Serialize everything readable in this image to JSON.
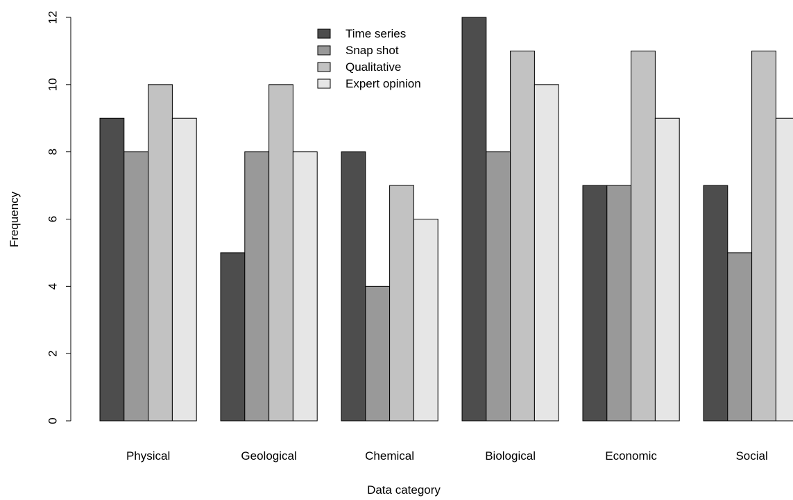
{
  "chart_data": {
    "type": "bar",
    "title": "",
    "xlabel": "Data category",
    "ylabel": "Frequency",
    "ylim": [
      0,
      12
    ],
    "yticks": [
      0,
      2,
      4,
      6,
      8,
      10,
      12
    ],
    "categories": [
      "Physical",
      "Geological",
      "Chemical",
      "Biological",
      "Economic",
      "Social"
    ],
    "series": [
      {
        "name": "Time series",
        "color": "#4d4d4d",
        "values": [
          9,
          5,
          8,
          12,
          7,
          7
        ]
      },
      {
        "name": "Snap shot",
        "color": "#999999",
        "values": [
          8,
          8,
          4,
          8,
          7,
          5
        ]
      },
      {
        "name": "Qualitative",
        "color": "#c2c2c2",
        "values": [
          10,
          10,
          7,
          11,
          11,
          11
        ]
      },
      {
        "name": "Expert opinion",
        "color": "#e6e6e6",
        "values": [
          9,
          8,
          6,
          10,
          9,
          9
        ]
      }
    ],
    "legend_position": "top-center",
    "grid": false
  }
}
